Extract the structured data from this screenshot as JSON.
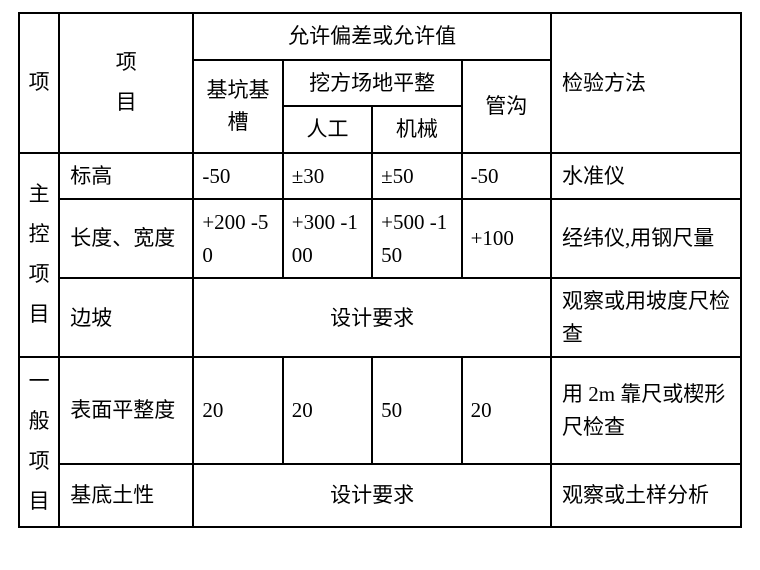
{
  "header": {
    "category_col": "项",
    "item_col": "项目",
    "tolerance_group": "允许偏差或允许值",
    "tol_pit": "基坑基槽",
    "tol_level_group": "挖方场地平整",
    "tol_manual": "人工",
    "tol_machine": "机械",
    "tol_trench": "管沟",
    "method_col": "检验方法"
  },
  "categories": {
    "main": "主控项目",
    "general": "一般项目"
  },
  "rows": {
    "r1": {
      "item": "标高",
      "pit": "-50",
      "manual": "±30",
      "machine": "±50",
      "trench": "-50",
      "method": "水准仪"
    },
    "r2": {
      "item": "长度、宽度",
      "pit": "+200 -50",
      "manual": "+300 -100",
      "machine": "+500 -150",
      "trench": "+100",
      "method": "经纬仪,用钢尺量"
    },
    "r3": {
      "item": "边坡",
      "span_text": "设计要求",
      "method": "观察或用坡度尺检查"
    },
    "r4": {
      "item": "表面平整度",
      "pit": "20",
      "manual": "20",
      "machine": "50",
      "trench": "20",
      "method": "用 2m 靠尺或楔形尺检查"
    },
    "r5": {
      "item": "基底土性",
      "span_text": "设计要求",
      "method": "观察或土样分析"
    }
  }
}
